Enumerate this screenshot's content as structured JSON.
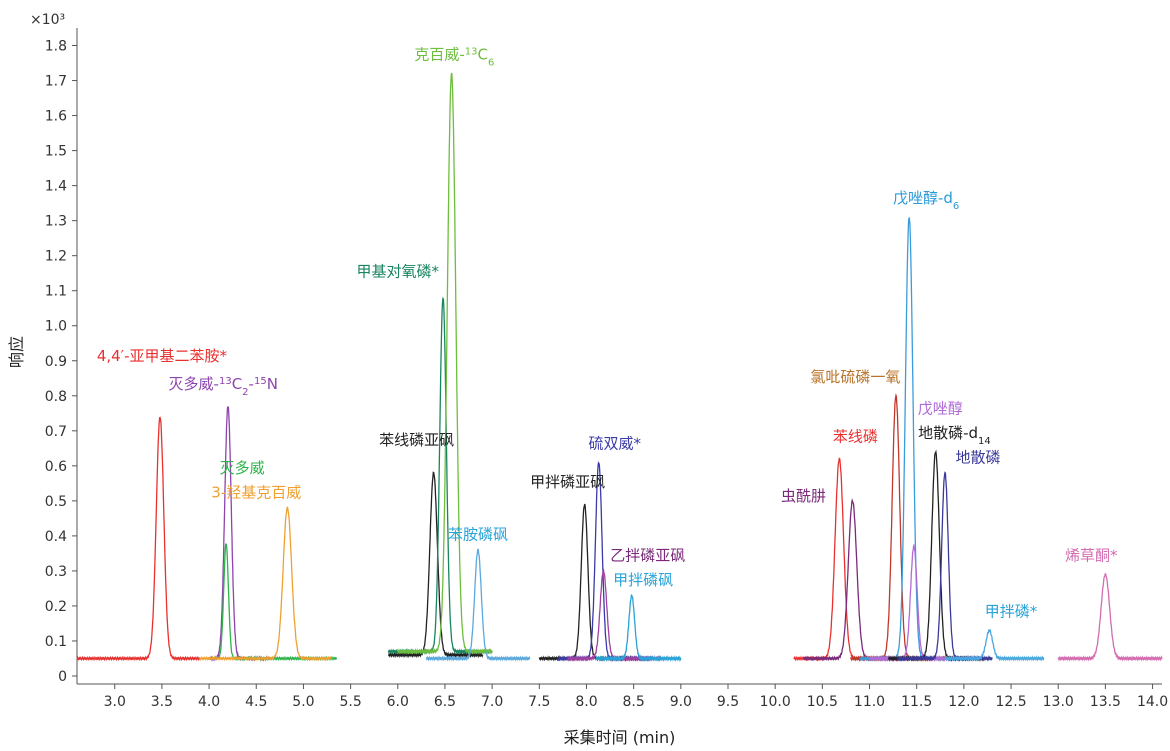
{
  "chart_data": {
    "type": "line",
    "title": "",
    "xlabel": "采集时间 (min)",
    "ylabel": "响应",
    "y_multiplier_label": "×10³",
    "xlim": [
      2.6,
      14.1
    ],
    "ylim": [
      0,
      1.85
    ],
    "x_ticks": [
      3.0,
      3.5,
      4.0,
      4.5,
      5.0,
      5.5,
      6.0,
      6.5,
      7.0,
      7.5,
      8.0,
      8.5,
      9.0,
      9.5,
      10.0,
      10.5,
      11.0,
      11.5,
      12.0,
      12.5,
      13.0,
      13.5,
      14.0
    ],
    "y_ticks": [
      0,
      0.1,
      0.2,
      0.3,
      0.4,
      0.5,
      0.6,
      0.7,
      0.8,
      0.9,
      1.0,
      1.1,
      1.2,
      1.3,
      1.4,
      1.5,
      1.6,
      1.7,
      1.8
    ],
    "grid": false,
    "series": [
      {
        "name": "4,4'-亚甲基二苯胺*",
        "color": "#e8312f",
        "range": [
          2.6,
          3.9
        ],
        "baseline": 0.05,
        "peaks": [
          {
            "rt": 3.48,
            "h": 0.74,
            "w": 0.04
          }
        ]
      },
      {
        "name": "灭多威-13C2-15N",
        "color": "#8e44ad",
        "range": [
          4.0,
          4.65
        ],
        "baseline": 0.05,
        "peaks": [
          {
            "rt": 4.2,
            "h": 0.77,
            "w": 0.035
          }
        ]
      },
      {
        "name": "灭多威",
        "color": "#2db34a",
        "range": [
          4.0,
          5.35
        ],
        "baseline": 0.05,
        "peaks": [
          {
            "rt": 4.18,
            "h": 0.38,
            "w": 0.025
          }
        ]
      },
      {
        "name": "3-羟基克百威",
        "color": "#f0a030",
        "range": [
          3.9,
          5.3
        ],
        "baseline": 0.05,
        "peaks": [
          {
            "rt": 4.83,
            "h": 0.48,
            "w": 0.045
          }
        ]
      },
      {
        "name": "苯线磷亚砜",
        "color": "#222222",
        "range": [
          5.9,
          6.9
        ],
        "baseline": 0.06,
        "peaks": [
          {
            "rt": 6.38,
            "h": 0.58,
            "w": 0.04
          }
        ]
      },
      {
        "name": "甲基对氧磷*",
        "color": "#18855f",
        "range": [
          5.9,
          7.0
        ],
        "baseline": 0.07,
        "peaks": [
          {
            "rt": 6.48,
            "h": 1.08,
            "w": 0.035
          }
        ]
      },
      {
        "name": "克百威-13C6",
        "color": "#6dbe3c",
        "range": [
          6.0,
          7.0
        ],
        "baseline": 0.07,
        "peaks": [
          {
            "rt": 6.57,
            "h": 1.72,
            "w": 0.045
          }
        ]
      },
      {
        "name": "苯胺磷砜",
        "color": "#5aa8dd",
        "range": [
          6.3,
          7.4
        ],
        "baseline": 0.05,
        "peaks": [
          {
            "rt": 6.85,
            "h": 0.36,
            "w": 0.035
          }
        ]
      },
      {
        "name": "甲拌磷亚砜",
        "color": "#222222",
        "range": [
          7.5,
          8.6
        ],
        "baseline": 0.05,
        "peaks": [
          {
            "rt": 7.98,
            "h": 0.49,
            "w": 0.035
          }
        ]
      },
      {
        "name": "硫双威*",
        "color": "#3a3aa8",
        "range": [
          7.7,
          8.7
        ],
        "baseline": 0.05,
        "peaks": [
          {
            "rt": 8.13,
            "h": 0.61,
            "w": 0.035
          }
        ]
      },
      {
        "name": "乙拌磷亚砜",
        "color": "#a040a0",
        "range": [
          7.8,
          8.8
        ],
        "baseline": 0.05,
        "peaks": [
          {
            "rt": 8.18,
            "h": 0.3,
            "w": 0.035
          }
        ]
      },
      {
        "name": "甲拌磷砜",
        "color": "#2aa3d8",
        "range": [
          8.1,
          9.0
        ],
        "baseline": 0.05,
        "peaks": [
          {
            "rt": 8.48,
            "h": 0.23,
            "w": 0.03
          }
        ]
      },
      {
        "name": "苯线磷",
        "color": "#e8312f",
        "range": [
          10.2,
          11.4
        ],
        "baseline": 0.05,
        "peaks": [
          {
            "rt": 10.68,
            "h": 0.62,
            "w": 0.045
          }
        ]
      },
      {
        "name": "虫酰肼",
        "color": "#7a2a7a",
        "range": [
          10.3,
          11.5
        ],
        "baseline": 0.05,
        "peaks": [
          {
            "rt": 10.82,
            "h": 0.5,
            "w": 0.045
          }
        ]
      },
      {
        "name": "氯吡硫磷一氧",
        "color": "#c0392b",
        "range": [
          10.8,
          11.8
        ],
        "baseline": 0.05,
        "peaks": [
          {
            "rt": 11.28,
            "h": 0.8,
            "w": 0.04
          }
        ]
      },
      {
        "name": "戊唑醇-d6",
        "color": "#3b9cdb",
        "range": [
          10.9,
          12.0
        ],
        "baseline": 0.05,
        "peaks": [
          {
            "rt": 11.42,
            "h": 1.31,
            "w": 0.04
          }
        ]
      },
      {
        "name": "戊唑醇",
        "color": "#b06bd8",
        "range": [
          11.0,
          11.9
        ],
        "baseline": 0.05,
        "peaks": [
          {
            "rt": 11.47,
            "h": 0.37,
            "w": 0.035
          }
        ]
      },
      {
        "name": "地散磷-d14",
        "color": "#222222",
        "range": [
          11.2,
          12.2
        ],
        "baseline": 0.05,
        "peaks": [
          {
            "rt": 11.7,
            "h": 0.64,
            "w": 0.04
          }
        ]
      },
      {
        "name": "地散磷",
        "color": "#3a3a9a",
        "range": [
          11.3,
          12.3
        ],
        "baseline": 0.05,
        "peaks": [
          {
            "rt": 11.8,
            "h": 0.58,
            "w": 0.035
          }
        ]
      },
      {
        "name": "甲拌磷*",
        "color": "#4aa8e0",
        "range": [
          11.8,
          12.85
        ],
        "baseline": 0.05,
        "peaks": [
          {
            "rt": 12.27,
            "h": 0.13,
            "w": 0.035
          }
        ]
      },
      {
        "name": "烯草酮*",
        "color": "#d46bb0",
        "range": [
          13.0,
          14.1
        ],
        "baseline": 0.05,
        "peaks": [
          {
            "rt": 13.5,
            "h": 0.29,
            "w": 0.045
          }
        ]
      }
    ],
    "annotations": [
      {
        "text": "4,4′-亚甲基二苯胺*",
        "color": "#e8312f",
        "x": 3.5,
        "y": 0.9
      },
      {
        "text": "灭多威-13C2-15N",
        "color": "#8e44ad",
        "x": 4.15,
        "y": 0.82
      },
      {
        "text": "灭多威",
        "color": "#2db34a",
        "x": 4.35,
        "y": 0.58
      },
      {
        "text": "3-羟基克百威",
        "color": "#f0a030",
        "x": 4.5,
        "y": 0.51
      },
      {
        "text": "苯线磷亚砜",
        "color": "#222222",
        "x": 6.2,
        "y": 0.66
      },
      {
        "text": "甲基对氧磷*",
        "color": "#18855f",
        "x": 6.0,
        "y": 1.14
      },
      {
        "text": "克百威-13C6",
        "color": "#6dbe3c",
        "x": 6.6,
        "y": 1.76
      },
      {
        "text": "苯胺磷砜",
        "color": "#2aa3d8",
        "x": 6.85,
        "y": 0.39
      },
      {
        "text": "甲拌磷亚砜",
        "color": "#222222",
        "x": 7.8,
        "y": 0.54
      },
      {
        "text": "硫双威*",
        "color": "#3a3aa8",
        "x": 8.3,
        "y": 0.65
      },
      {
        "text": "乙拌磷亚砜",
        "color": "#7a2a7a",
        "x": 8.65,
        "y": 0.33
      },
      {
        "text": "甲拌磷砜",
        "color": "#2aa3d8",
        "x": 8.6,
        "y": 0.26
      },
      {
        "text": "苯线磷",
        "color": "#e8312f",
        "x": 10.85,
        "y": 0.67
      },
      {
        "text": "虫酰肼",
        "color": "#7a2a7a",
        "x": 10.3,
        "y": 0.5
      },
      {
        "text": "氯吡硫磷一氧",
        "color": "#b8732a",
        "x": 10.85,
        "y": 0.84
      },
      {
        "text": "戊唑醇-d6",
        "color": "#2a9bd8",
        "x": 11.6,
        "y": 1.35
      },
      {
        "text": "戊唑醇",
        "color": "#b06bd8",
        "x": 11.75,
        "y": 0.75
      },
      {
        "text": "地散磷-d14",
        "color": "#222222",
        "x": 11.9,
        "y": 0.68
      },
      {
        "text": "地散磷",
        "color": "#3a3a9a",
        "x": 12.15,
        "y": 0.61
      },
      {
        "text": "甲拌磷*",
        "color": "#2aa3d8",
        "x": 12.5,
        "y": 0.17
      },
      {
        "text": "烯草酮*",
        "color": "#d46bb0",
        "x": 13.35,
        "y": 0.33
      }
    ]
  }
}
